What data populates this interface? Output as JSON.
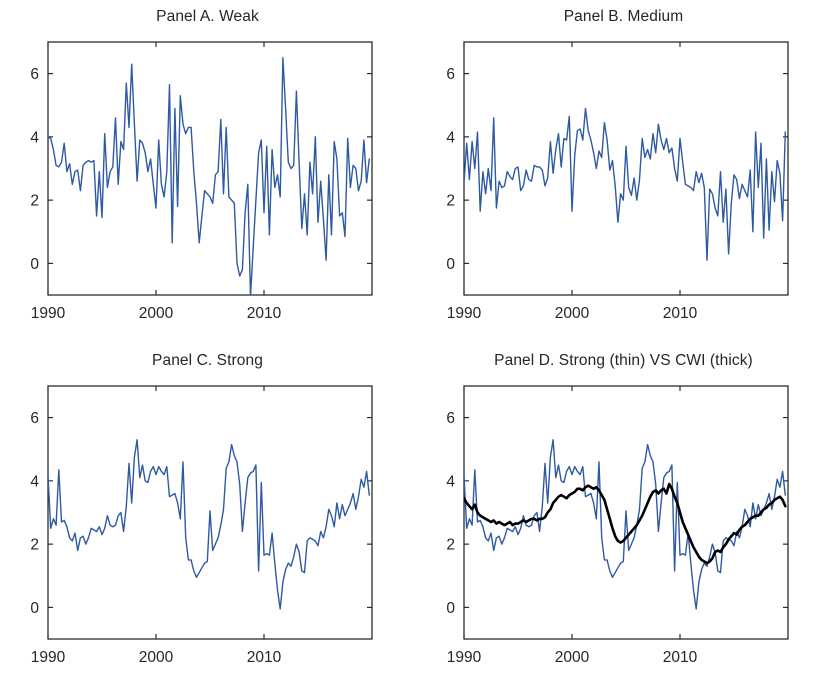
{
  "figure": {
    "background": "#ffffff",
    "axis_color": "#1a1a1a",
    "tick_label_color": "#262626",
    "series_blue": "#2e59a3",
    "series_black": "#000000"
  },
  "chart_data": [
    {
      "id": "panel-a",
      "type": "line",
      "title": "Panel A. Weak",
      "xlabel": "",
      "ylabel": "",
      "xlim": [
        1990,
        2020
      ],
      "ylim": [
        -1,
        7
      ],
      "xticks": [
        1990,
        2000,
        2010
      ],
      "yticks": [
        0,
        2,
        4,
        6
      ],
      "grid": false,
      "legend": "none",
      "x_start": 1990,
      "x_step": 0.25,
      "series": [
        {
          "name": "Weak",
          "color": "#2e59a3",
          "width": 1.4,
          "values": [
            4.0,
            3.95,
            3.6,
            3.1,
            3.05,
            3.2,
            3.8,
            2.9,
            3.15,
            2.5,
            2.9,
            2.95,
            2.3,
            3.1,
            3.2,
            3.25,
            3.2,
            3.25,
            1.5,
            2.9,
            1.45,
            4.1,
            2.4,
            2.9,
            3.05,
            4.6,
            2.5,
            3.85,
            3.6,
            5.7,
            4.3,
            6.3,
            4.4,
            2.6,
            3.9,
            3.8,
            3.5,
            2.9,
            3.3,
            2.5,
            1.75,
            3.9,
            2.5,
            2.1,
            2.9,
            5.65,
            0.65,
            4.9,
            1.8,
            5.3,
            4.4,
            4.1,
            4.3,
            4.3,
            2.9,
            1.9,
            0.65,
            1.5,
            2.3,
            2.2,
            2.1,
            1.9,
            2.8,
            2.9,
            4.55,
            2.2,
            4.3,
            2.1,
            2.0,
            1.9,
            0.0,
            -0.4,
            -0.2,
            1.6,
            2.5,
            -1.05,
            0.5,
            2.0,
            3.5,
            3.9,
            1.6,
            3.7,
            0.9,
            3.6,
            2.4,
            2.8,
            2.1,
            6.5,
            4.9,
            3.2,
            3.0,
            3.1,
            5.45,
            3.2,
            1.1,
            2.2,
            0.9,
            3.2,
            2.2,
            4.0,
            1.3,
            2.6,
            1.4,
            0.1,
            2.8,
            0.9,
            3.85,
            3.3,
            1.5,
            1.6,
            0.85,
            3.95,
            2.4,
            3.1,
            3.0,
            2.3,
            2.6,
            3.9,
            2.55,
            3.3
          ]
        }
      ]
    },
    {
      "id": "panel-b",
      "type": "line",
      "title": "Panel B. Medium",
      "xlabel": "",
      "ylabel": "",
      "xlim": [
        1990,
        2020
      ],
      "ylim": [
        -1,
        7
      ],
      "xticks": [
        1990,
        2000,
        2010
      ],
      "yticks": [
        0,
        2,
        4,
        6
      ],
      "grid": false,
      "legend": "none",
      "x_start": 1990,
      "x_step": 0.25,
      "series": [
        {
          "name": "Medium",
          "color": "#2e59a3",
          "width": 1.4,
          "values": [
            2.55,
            3.8,
            2.65,
            3.85,
            3.0,
            4.15,
            1.65,
            2.9,
            2.2,
            3.0,
            2.3,
            4.6,
            1.75,
            2.6,
            2.4,
            2.45,
            2.9,
            2.75,
            2.65,
            3.0,
            3.05,
            2.3,
            2.45,
            2.95,
            2.65,
            2.6,
            3.1,
            3.05,
            3.05,
            2.95,
            2.45,
            2.7,
            3.85,
            2.85,
            3.6,
            4.1,
            3.05,
            3.95,
            3.9,
            4.65,
            1.65,
            3.4,
            4.2,
            4.25,
            3.9,
            4.9,
            4.2,
            3.9,
            3.5,
            3.0,
            3.55,
            3.35,
            4.45,
            3.9,
            2.95,
            3.25,
            2.45,
            1.3,
            2.2,
            2.0,
            3.7,
            2.4,
            2.15,
            2.7,
            2.0,
            2.65,
            3.95,
            3.35,
            3.6,
            3.3,
            4.1,
            3.5,
            4.4,
            3.9,
            3.6,
            3.95,
            3.5,
            3.65,
            3.0,
            2.6,
            3.95,
            3.2,
            2.5,
            2.45,
            2.4,
            2.3,
            2.9,
            2.55,
            2.85,
            2.4,
            0.1,
            2.35,
            2.2,
            1.75,
            1.5,
            2.9,
            1.3,
            2.35,
            0.3,
            1.9,
            2.8,
            2.65,
            2.05,
            2.5,
            2.3,
            2.1,
            2.95,
            1.0,
            4.15,
            2.4,
            3.8,
            0.8,
            3.3,
            1.05,
            2.9,
            1.95,
            3.25,
            2.85,
            1.35,
            4.15
          ]
        }
      ]
    },
    {
      "id": "panel-c",
      "type": "line",
      "title": "Panel C. Strong",
      "xlabel": "",
      "ylabel": "",
      "xlim": [
        1990,
        2020
      ],
      "ylim": [
        -1,
        7
      ],
      "xticks": [
        1990,
        2000,
        2010
      ],
      "yticks": [
        0,
        2,
        4,
        6
      ],
      "grid": false,
      "legend": "none",
      "x_start": 1990,
      "x_step": 0.25,
      "series": [
        {
          "name": "Strong",
          "color": "#2e59a3",
          "width": 1.4,
          "values": [
            4.15,
            2.5,
            2.8,
            2.6,
            4.35,
            2.7,
            2.75,
            2.55,
            2.2,
            2.1,
            2.35,
            1.8,
            2.2,
            2.25,
            2.0,
            2.2,
            2.5,
            2.45,
            2.4,
            2.55,
            2.3,
            2.5,
            2.9,
            2.6,
            2.55,
            2.6,
            2.9,
            3.0,
            2.4,
            3.2,
            4.55,
            3.3,
            4.75,
            5.3,
            4.1,
            4.5,
            4.0,
            3.95,
            4.3,
            4.45,
            4.2,
            4.45,
            4.3,
            4.2,
            4.45,
            3.5,
            3.55,
            3.6,
            3.3,
            2.8,
            4.6,
            2.2,
            1.5,
            1.5,
            1.15,
            0.95,
            1.1,
            1.25,
            1.4,
            1.45,
            3.05,
            1.8,
            2.0,
            2.2,
            2.6,
            3.1,
            4.4,
            4.6,
            5.15,
            4.8,
            4.6,
            3.9,
            2.4,
            3.3,
            4.1,
            4.25,
            4.3,
            4.5,
            1.15,
            3.95,
            1.65,
            1.7,
            1.65,
            2.35,
            1.4,
            0.55,
            -0.05,
            0.8,
            1.2,
            1.4,
            1.3,
            1.6,
            2.0,
            1.75,
            1.15,
            1.1,
            2.1,
            2.2,
            2.15,
            2.1,
            1.95,
            2.4,
            2.2,
            2.55,
            3.1,
            2.9,
            2.55,
            3.3,
            2.8,
            3.25,
            2.9,
            3.1,
            3.3,
            3.6,
            3.1,
            3.5,
            4.05,
            3.8,
            4.3,
            3.55
          ]
        }
      ]
    },
    {
      "id": "panel-d",
      "type": "line",
      "title": "Panel D. Strong (thin) VS CWI (thick)",
      "xlabel": "",
      "ylabel": "",
      "xlim": [
        1990,
        2020
      ],
      "ylim": [
        -1,
        7
      ],
      "xticks": [
        1990,
        2000,
        2010
      ],
      "yticks": [
        0,
        2,
        4,
        6
      ],
      "grid": false,
      "legend": "described-in-title",
      "x_start": 1990,
      "x_step": 0.25,
      "series": [
        {
          "name": "Strong (thin)",
          "color": "#2e59a3",
          "width": 1.4,
          "values": [
            4.15,
            2.5,
            2.8,
            2.6,
            4.35,
            2.7,
            2.75,
            2.55,
            2.2,
            2.1,
            2.35,
            1.8,
            2.2,
            2.25,
            2.0,
            2.2,
            2.5,
            2.45,
            2.4,
            2.55,
            2.3,
            2.5,
            2.9,
            2.6,
            2.55,
            2.6,
            2.9,
            3.0,
            2.4,
            3.2,
            4.55,
            3.3,
            4.75,
            5.3,
            4.1,
            4.5,
            4.0,
            3.95,
            4.3,
            4.45,
            4.2,
            4.45,
            4.3,
            4.2,
            4.45,
            3.5,
            3.55,
            3.6,
            3.3,
            2.8,
            4.6,
            2.2,
            1.5,
            1.5,
            1.15,
            0.95,
            1.1,
            1.25,
            1.4,
            1.45,
            3.05,
            1.8,
            2.0,
            2.2,
            2.6,
            3.1,
            4.4,
            4.6,
            5.15,
            4.8,
            4.6,
            3.9,
            2.4,
            3.3,
            4.1,
            4.25,
            4.3,
            4.5,
            1.15,
            3.95,
            1.65,
            1.7,
            1.65,
            2.35,
            1.4,
            0.55,
            -0.05,
            0.8,
            1.2,
            1.4,
            1.3,
            1.6,
            2.0,
            1.75,
            1.15,
            1.1,
            2.1,
            2.2,
            2.15,
            2.1,
            1.95,
            2.4,
            2.2,
            2.55,
            3.1,
            2.9,
            2.55,
            3.3,
            2.8,
            3.25,
            2.9,
            3.1,
            3.3,
            3.6,
            3.1,
            3.5,
            4.05,
            3.8,
            4.3,
            3.55
          ]
        },
        {
          "name": "CWI (thick)",
          "color": "#000000",
          "width": 2.6,
          "values": [
            3.45,
            3.3,
            3.2,
            3.1,
            3.25,
            3.0,
            2.9,
            2.85,
            2.8,
            2.75,
            2.7,
            2.75,
            2.65,
            2.7,
            2.65,
            2.6,
            2.65,
            2.7,
            2.6,
            2.65,
            2.65,
            2.7,
            2.75,
            2.7,
            2.75,
            2.8,
            2.8,
            2.75,
            2.8,
            2.8,
            2.85,
            3.0,
            3.1,
            3.3,
            3.4,
            3.5,
            3.55,
            3.5,
            3.45,
            3.55,
            3.6,
            3.65,
            3.75,
            3.75,
            3.7,
            3.8,
            3.85,
            3.8,
            3.75,
            3.8,
            3.7,
            3.55,
            3.4,
            3.1,
            2.8,
            2.5,
            2.25,
            2.1,
            2.05,
            2.1,
            2.2,
            2.3,
            2.4,
            2.5,
            2.6,
            2.75,
            2.9,
            3.1,
            3.3,
            3.5,
            3.65,
            3.7,
            3.6,
            3.7,
            3.75,
            3.6,
            3.9,
            3.75,
            3.5,
            3.3,
            3.0,
            2.7,
            2.5,
            2.3,
            2.1,
            1.9,
            1.75,
            1.6,
            1.5,
            1.45,
            1.4,
            1.45,
            1.55,
            1.75,
            1.8,
            1.75,
            1.9,
            2.0,
            2.15,
            2.25,
            2.35,
            2.3,
            2.45,
            2.55,
            2.6,
            2.7,
            2.8,
            2.85,
            2.9,
            2.9,
            3.0,
            3.1,
            3.15,
            3.25,
            3.3,
            3.4,
            3.45,
            3.5,
            3.4,
            3.2
          ]
        }
      ]
    }
  ]
}
